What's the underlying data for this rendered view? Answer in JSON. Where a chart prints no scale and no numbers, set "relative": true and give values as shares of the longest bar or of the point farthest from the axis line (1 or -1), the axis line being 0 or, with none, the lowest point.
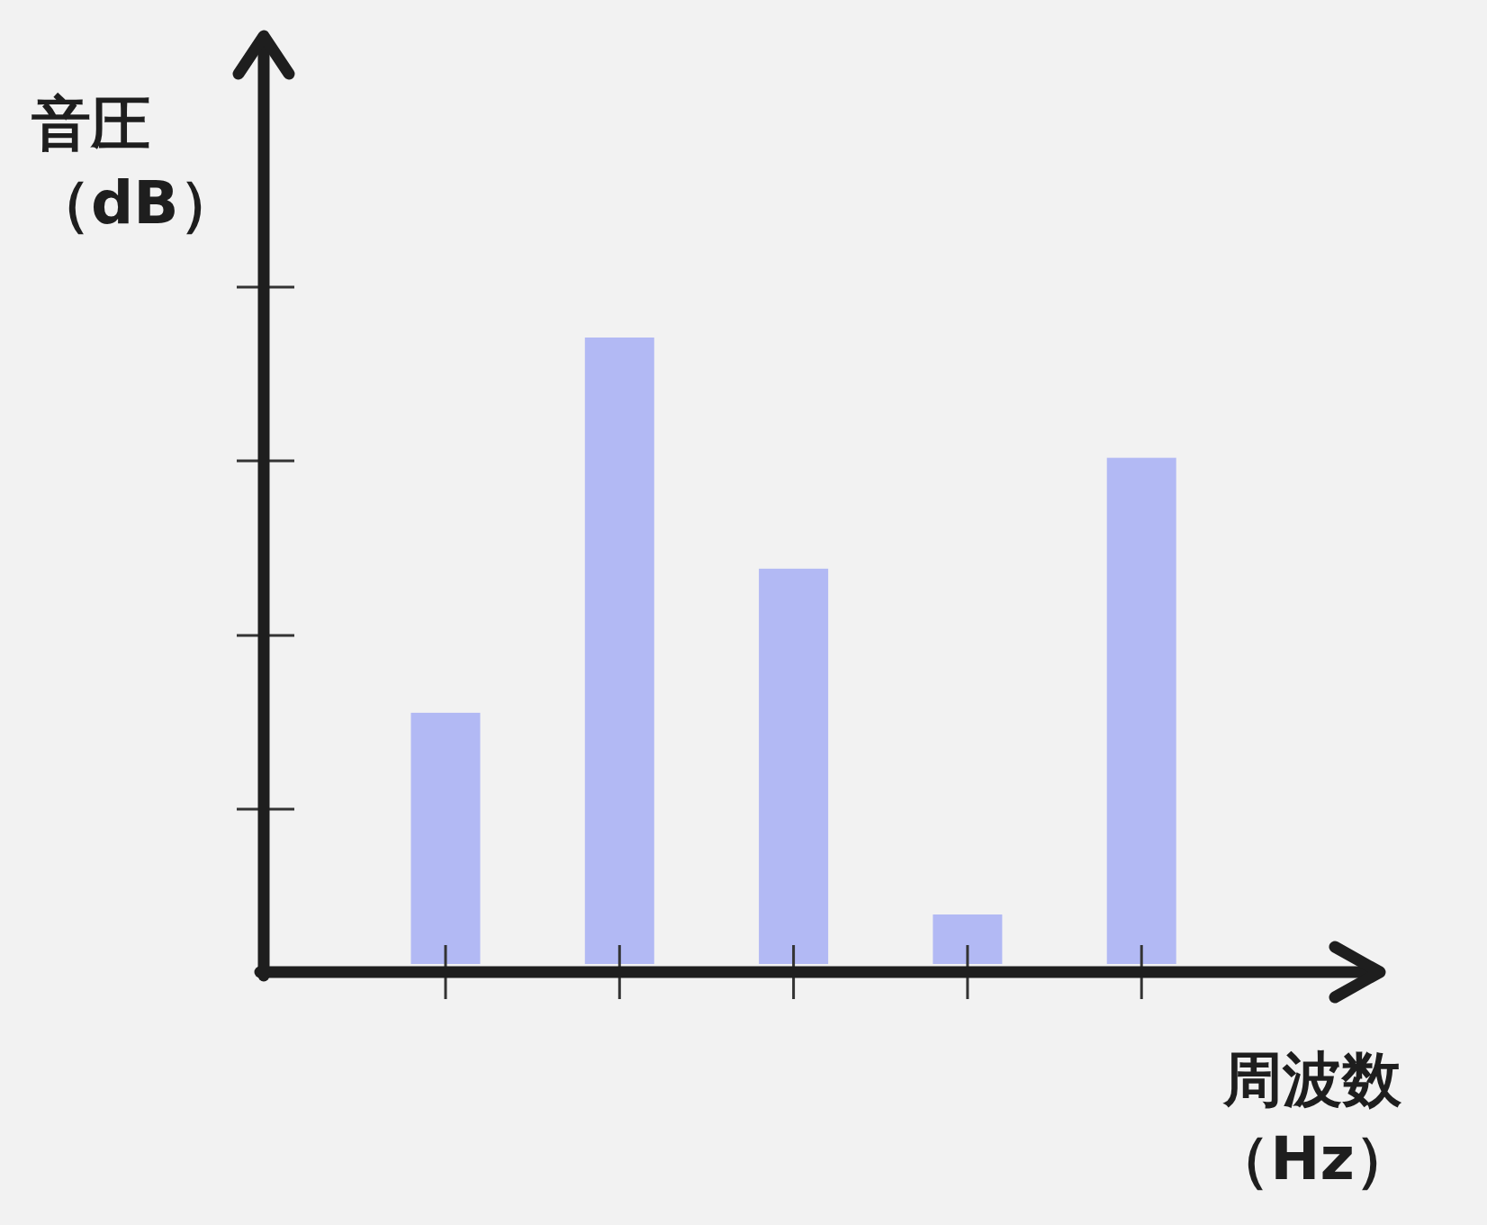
{
  "chart_data": {
    "type": "bar",
    "relative": true,
    "xlabel": "周波数（Hz）",
    "ylabel": "音圧（dB）",
    "categories": [
      null,
      null,
      null,
      null,
      null
    ],
    "values": [
      0.401,
      1,
      0.631,
      0.079,
      0.808
    ],
    "color": "#b2b9f4"
  }
}
